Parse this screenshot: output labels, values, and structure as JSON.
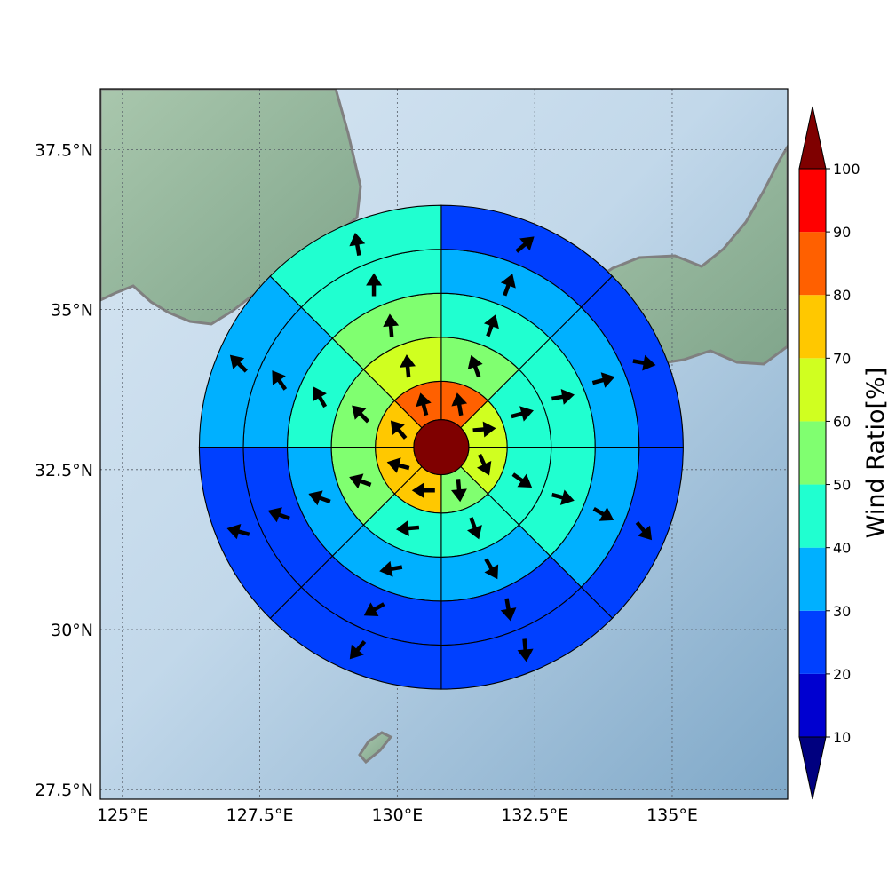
{
  "map": {
    "lon_range": [
      124.6,
      137.1
    ],
    "lat_range": [
      27.35,
      38.45
    ],
    "center": {
      "lon": 130.8,
      "lat": 32.85
    },
    "ring_edges_deg": [
      0.5,
      1.2,
      2.0,
      2.8,
      3.6,
      4.4
    ],
    "sectors": 8,
    "coastline_color": "#808080",
    "lon_ticks": [
      {
        "value": 125.0,
        "label": "125°E"
      },
      {
        "value": 127.5,
        "label": "127.5°E"
      },
      {
        "value": 130.0,
        "label": "130°E"
      },
      {
        "value": 132.5,
        "label": "132.5°E"
      },
      {
        "value": 135.0,
        "label": "135°E"
      }
    ],
    "lat_ticks": [
      {
        "value": 27.5,
        "label": "27.5°N"
      },
      {
        "value": 30.0,
        "label": "30°N"
      },
      {
        "value": 32.5,
        "label": "32.5°N"
      },
      {
        "value": 35.0,
        "label": "35°N"
      },
      {
        "value": 37.5,
        "label": "37.5°N"
      }
    ]
  },
  "colorbar": {
    "title": "Wind Ratio[%]",
    "ticks": [
      "10",
      "20",
      "30",
      "40",
      "50",
      "60",
      "70",
      "80",
      "90",
      "100"
    ],
    "levels": [
      10,
      20,
      30,
      40,
      50,
      60,
      70,
      80,
      90,
      100
    ],
    "colors": [
      "#0000d0",
      "#0040ff",
      "#00b0ff",
      "#20ffd0",
      "#80ff70",
      "#d0ff20",
      "#ffc800",
      "#ff6000",
      "#ff0000"
    ],
    "under_color": "#00007f",
    "over_color": "#7f0000"
  },
  "chart_data": {
    "type": "polar_grid_wind_ratio",
    "center_value": 100,
    "sector_order": [
      "N-NE",
      "NE-E",
      "E-SE",
      "SE-S",
      "S-SW",
      "SW-W",
      "W-NW",
      "NW-N"
    ],
    "rings": [
      {
        "ring": 1,
        "values": [
          85,
          65,
          65,
          55,
          75,
          75,
          75,
          85
        ],
        "arrow_dir": [
          350,
          85,
          155,
          175,
          270,
          285,
          320,
          345
        ]
      },
      {
        "ring": 2,
        "values": [
          55,
          45,
          45,
          45,
          45,
          55,
          55,
          65
        ],
        "arrow_dir": [
          340,
          75,
          125,
          160,
          265,
          290,
          315,
          355
        ]
      },
      {
        "ring": 3,
        "values": [
          45,
          45,
          45,
          35,
          35,
          35,
          45,
          55
        ],
        "arrow_dir": [
          20,
          80,
          105,
          150,
          260,
          290,
          330,
          355
        ]
      },
      {
        "ring": 4,
        "values": [
          35,
          35,
          35,
          25,
          25,
          25,
          35,
          45
        ],
        "arrow_dir": [
          20,
          75,
          120,
          170,
          240,
          290,
          325,
          0
        ]
      },
      {
        "ring": 5,
        "values": [
          25,
          25,
          25,
          25,
          25,
          25,
          35,
          45
        ],
        "arrow_dir": [
          50,
          100,
          140,
          175,
          220,
          285,
          315,
          350
        ]
      }
    ]
  }
}
